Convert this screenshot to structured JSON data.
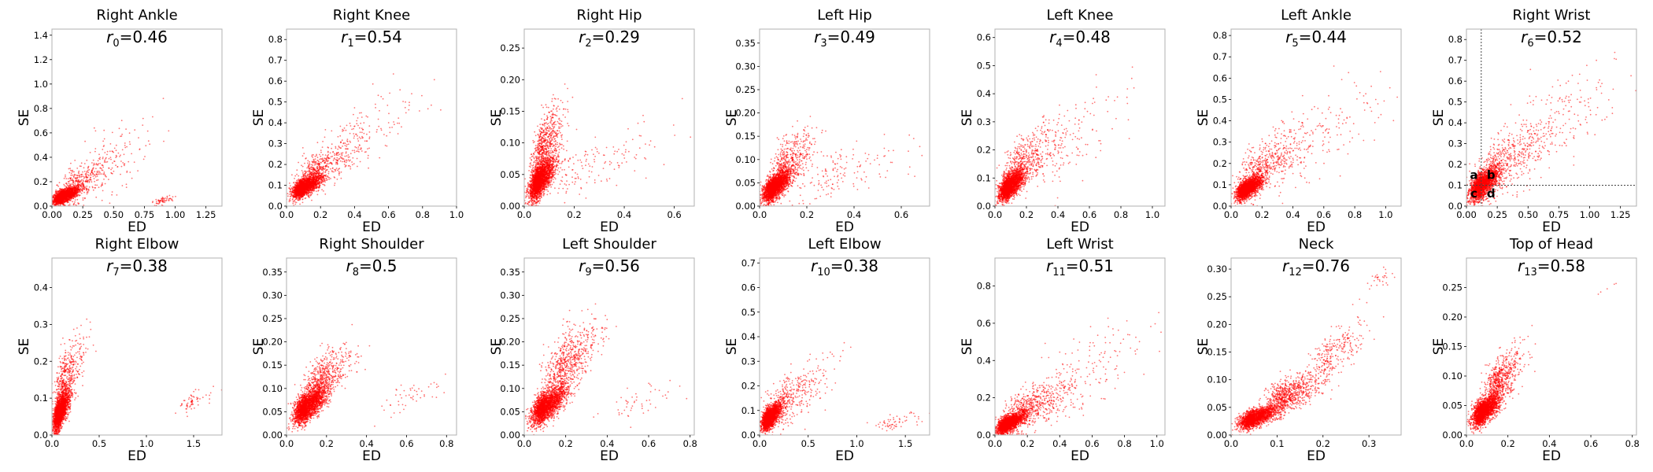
{
  "figure": {
    "colors": {
      "points": "#ff0000",
      "frame": "#b0b0b0",
      "refline": "#444444"
    }
  },
  "chart_data": [
    {
      "type": "scatter",
      "title": "Right Ankle",
      "r_label": {
        "base": "r",
        "sub": "0",
        "text": "=0.46"
      },
      "xlabel": "ED",
      "ylabel": "SE",
      "xlim": [
        0,
        1.38
      ],
      "ylim": [
        0,
        1.45
      ],
      "xticks": [
        "0.00",
        "0.25",
        "0.50",
        "0.75",
        "1.00",
        "1.25"
      ],
      "yticks": [
        "0.0",
        "0.2",
        "0.4",
        "0.6",
        "0.8",
        "1.0",
        "1.2",
        "1.4"
      ],
      "correlation": 0.46,
      "clusters": [
        {
          "cx": 0.09,
          "cy": 0.08,
          "sx": 0.06,
          "sy": 0.05,
          "n": 2200
        },
        {
          "cx": 0.22,
          "cy": 0.18,
          "sx": 0.12,
          "sy": 0.15,
          "n": 400
        },
        {
          "cx": 0.45,
          "cy": 0.35,
          "sx": 0.18,
          "sy": 0.25,
          "n": 120
        },
        {
          "cx": 0.88,
          "cy": 0.04,
          "sx": 0.05,
          "sy": 0.03,
          "n": 60
        }
      ]
    },
    {
      "type": "scatter",
      "title": "Right Knee",
      "r_label": {
        "base": "r",
        "sub": "1",
        "text": "=0.54"
      },
      "xlabel": "ED",
      "ylabel": "SE",
      "xlim": [
        0,
        1.0
      ],
      "ylim": [
        0,
        0.85
      ],
      "xticks": [
        "0.0",
        "0.2",
        "0.4",
        "0.6",
        "0.8",
        "1.0"
      ],
      "yticks": [
        "0.0",
        "0.1",
        "0.2",
        "0.3",
        "0.4",
        "0.5",
        "0.6",
        "0.7",
        "0.8"
      ],
      "correlation": 0.54,
      "clusters": [
        {
          "cx": 0.1,
          "cy": 0.09,
          "sx": 0.05,
          "sy": 0.04,
          "n": 2200
        },
        {
          "cx": 0.2,
          "cy": 0.18,
          "sx": 0.1,
          "sy": 0.09,
          "n": 500
        },
        {
          "cx": 0.45,
          "cy": 0.35,
          "sx": 0.18,
          "sy": 0.15,
          "n": 150
        }
      ]
    },
    {
      "type": "scatter",
      "title": "Right Hip",
      "r_label": {
        "base": "r",
        "sub": "2",
        "text": "=0.29"
      },
      "xlabel": "ED",
      "ylabel": "SE",
      "xlim": [
        0,
        0.68
      ],
      "ylim": [
        0,
        0.28
      ],
      "xticks": [
        "0.0",
        "0.2",
        "0.4",
        "0.6"
      ],
      "yticks": [
        "0.00",
        "0.05",
        "0.10",
        "0.15",
        "0.20",
        "0.25"
      ],
      "correlation": 0.29,
      "clusters": [
        {
          "cx": 0.06,
          "cy": 0.04,
          "sx": 0.03,
          "sy": 0.025,
          "n": 2400
        },
        {
          "cx": 0.08,
          "cy": 0.09,
          "sx": 0.04,
          "sy": 0.05,
          "n": 700
        },
        {
          "cx": 0.25,
          "cy": 0.06,
          "sx": 0.15,
          "sy": 0.04,
          "n": 150
        }
      ]
    },
    {
      "type": "scatter",
      "title": "Left Hip",
      "r_label": {
        "base": "r",
        "sub": "3",
        "text": "=0.49"
      },
      "xlabel": "ED",
      "ylabel": "SE",
      "xlim": [
        0,
        0.72
      ],
      "ylim": [
        0,
        0.38
      ],
      "xticks": [
        "0.0",
        "0.2",
        "0.4",
        "0.6"
      ],
      "yticks": [
        "0.00",
        "0.05",
        "0.10",
        "0.15",
        "0.20",
        "0.25",
        "0.30",
        "0.35"
      ],
      "correlation": 0.49,
      "clusters": [
        {
          "cx": 0.06,
          "cy": 0.04,
          "sx": 0.035,
          "sy": 0.025,
          "n": 2400
        },
        {
          "cx": 0.12,
          "cy": 0.09,
          "sx": 0.06,
          "sy": 0.05,
          "n": 500
        },
        {
          "cx": 0.35,
          "cy": 0.07,
          "sx": 0.18,
          "sy": 0.05,
          "n": 150
        }
      ]
    },
    {
      "type": "scatter",
      "title": "Left Knee",
      "r_label": {
        "base": "r",
        "sub": "4",
        "text": "=0.48"
      },
      "xlabel": "ED",
      "ylabel": "SE",
      "xlim": [
        0,
        1.08
      ],
      "ylim": [
        0,
        0.63
      ],
      "xticks": [
        "0.0",
        "0.2",
        "0.4",
        "0.6",
        "0.8",
        "1.0"
      ],
      "yticks": [
        "0.0",
        "0.1",
        "0.2",
        "0.3",
        "0.4",
        "0.5",
        "0.6"
      ],
      "correlation": 0.48,
      "clusters": [
        {
          "cx": 0.09,
          "cy": 0.07,
          "sx": 0.05,
          "sy": 0.04,
          "n": 2300
        },
        {
          "cx": 0.18,
          "cy": 0.15,
          "sx": 0.1,
          "sy": 0.09,
          "n": 500
        },
        {
          "cx": 0.45,
          "cy": 0.22,
          "sx": 0.2,
          "sy": 0.15,
          "n": 150
        }
      ]
    },
    {
      "type": "scatter",
      "title": "Left Ankle",
      "r_label": {
        "base": "r",
        "sub": "5",
        "text": "=0.44"
      },
      "xlabel": "ED",
      "ylabel": "SE",
      "xlim": [
        0,
        1.1
      ],
      "ylim": [
        0,
        0.83
      ],
      "xticks": [
        "0.0",
        "0.2",
        "0.4",
        "0.6",
        "0.8",
        "1.0"
      ],
      "yticks": [
        "0.0",
        "0.1",
        "0.2",
        "0.3",
        "0.4",
        "0.5",
        "0.6",
        "0.7",
        "0.8"
      ],
      "correlation": 0.44,
      "clusters": [
        {
          "cx": 0.1,
          "cy": 0.08,
          "sx": 0.05,
          "sy": 0.04,
          "n": 2300
        },
        {
          "cx": 0.2,
          "cy": 0.18,
          "sx": 0.12,
          "sy": 0.12,
          "n": 500
        },
        {
          "cx": 0.5,
          "cy": 0.3,
          "sx": 0.25,
          "sy": 0.2,
          "n": 200
        }
      ]
    },
    {
      "type": "scatter",
      "title": "Right Wrist",
      "r_label": {
        "base": "r",
        "sub": "6",
        "text": "=0.52"
      },
      "xlabel": "ED",
      "ylabel": "SE",
      "xlim": [
        0,
        1.38
      ],
      "ylim": [
        0,
        0.85
      ],
      "xticks": [
        "0.00",
        "0.25",
        "0.50",
        "0.75",
        "1.00",
        "1.25"
      ],
      "yticks": [
        "0.0",
        "0.1",
        "0.2",
        "0.3",
        "0.4",
        "0.5",
        "0.6",
        "0.7",
        "0.8"
      ],
      "correlation": 0.52,
      "reference_lines": {
        "x": 0.12,
        "y": 0.1
      },
      "quadrant_labels": [
        {
          "label": "a",
          "x": 0.06,
          "y": 0.15
        },
        {
          "label": "b",
          "x": 0.2,
          "y": 0.15
        },
        {
          "label": "c",
          "x": 0.06,
          "y": 0.06
        },
        {
          "label": "d",
          "x": 0.2,
          "y": 0.06
        }
      ],
      "clusters": [
        {
          "cx": 0.12,
          "cy": 0.1,
          "sx": 0.07,
          "sy": 0.06,
          "n": 2200
        },
        {
          "cx": 0.3,
          "cy": 0.2,
          "sx": 0.18,
          "sy": 0.14,
          "n": 500
        },
        {
          "cx": 0.7,
          "cy": 0.4,
          "sx": 0.3,
          "sy": 0.2,
          "n": 200
        }
      ]
    },
    {
      "type": "scatter",
      "title": "Right Elbow",
      "r_label": {
        "base": "r",
        "sub": "7",
        "text": "=0.38"
      },
      "xlabel": "ED",
      "ylabel": "SE",
      "xlim": [
        0,
        1.8
      ],
      "ylim": [
        0,
        0.48
      ],
      "xticks": [
        "0.0",
        "0.5",
        "1.0",
        "1.5"
      ],
      "yticks": [
        "0.0",
        "0.1",
        "0.2",
        "0.3",
        "0.4"
      ],
      "correlation": 0.38,
      "clusters": [
        {
          "cx": 0.08,
          "cy": 0.06,
          "sx": 0.05,
          "sy": 0.04,
          "n": 2300
        },
        {
          "cx": 0.15,
          "cy": 0.15,
          "sx": 0.1,
          "sy": 0.08,
          "n": 500
        },
        {
          "cx": 1.5,
          "cy": 0.09,
          "sx": 0.12,
          "sy": 0.03,
          "n": 60
        }
      ]
    },
    {
      "type": "scatter",
      "title": "Right Shoulder",
      "r_label": {
        "base": "r",
        "sub": "8",
        "text": "=0.5"
      },
      "xlabel": "ED",
      "ylabel": "SE",
      "xlim": [
        0,
        0.85
      ],
      "ylim": [
        0,
        0.38
      ],
      "xticks": [
        "0.0",
        "0.2",
        "0.4",
        "0.6",
        "0.8"
      ],
      "yticks": [
        "0.00",
        "0.05",
        "0.10",
        "0.15",
        "0.20",
        "0.25",
        "0.30",
        "0.35"
      ],
      "correlation": 0.5,
      "clusters": [
        {
          "cx": 0.1,
          "cy": 0.06,
          "sx": 0.05,
          "sy": 0.03,
          "n": 2400
        },
        {
          "cx": 0.18,
          "cy": 0.12,
          "sx": 0.07,
          "sy": 0.05,
          "n": 600
        },
        {
          "cx": 0.6,
          "cy": 0.08,
          "sx": 0.1,
          "sy": 0.03,
          "n": 50
        }
      ]
    },
    {
      "type": "scatter",
      "title": "Left Shoulder",
      "r_label": {
        "base": "r",
        "sub": "9",
        "text": "=0.56"
      },
      "xlabel": "ED",
      "ylabel": "SE",
      "xlim": [
        0,
        0.82
      ],
      "ylim": [
        0,
        0.38
      ],
      "xticks": [
        "0.0",
        "0.2",
        "0.4",
        "0.6",
        "0.8"
      ],
      "yticks": [
        "0.00",
        "0.05",
        "0.10",
        "0.15",
        "0.20",
        "0.25",
        "0.30",
        "0.35"
      ],
      "correlation": 0.56,
      "clusters": [
        {
          "cx": 0.1,
          "cy": 0.06,
          "sx": 0.05,
          "sy": 0.03,
          "n": 2300
        },
        {
          "cx": 0.2,
          "cy": 0.15,
          "sx": 0.08,
          "sy": 0.07,
          "n": 700
        },
        {
          "cx": 0.55,
          "cy": 0.07,
          "sx": 0.12,
          "sy": 0.03,
          "n": 50
        }
      ]
    },
    {
      "type": "scatter",
      "title": "Left Elbow",
      "r_label": {
        "base": "r",
        "sub": "10",
        "text": "=0.38"
      },
      "xlabel": "ED",
      "ylabel": "SE",
      "xlim": [
        0,
        1.75
      ],
      "ylim": [
        0,
        0.72
      ],
      "xticks": [
        "0.0",
        "0.5",
        "1.0",
        "1.5"
      ],
      "yticks": [
        "0.0",
        "0.1",
        "0.2",
        "0.3",
        "0.4",
        "0.5",
        "0.6",
        "0.7"
      ],
      "correlation": 0.38,
      "clusters": [
        {
          "cx": 0.1,
          "cy": 0.07,
          "sx": 0.06,
          "sy": 0.04,
          "n": 2300
        },
        {
          "cx": 0.3,
          "cy": 0.15,
          "sx": 0.2,
          "sy": 0.1,
          "n": 400
        },
        {
          "cx": 1.4,
          "cy": 0.05,
          "sx": 0.15,
          "sy": 0.03,
          "n": 60
        }
      ]
    },
    {
      "type": "scatter",
      "title": "Left Wrist",
      "r_label": {
        "base": "r",
        "sub": "11",
        "text": "=0.51"
      },
      "xlabel": "ED",
      "ylabel": "SE",
      "xlim": [
        0,
        1.05
      ],
      "ylim": [
        0,
        0.95
      ],
      "xticks": [
        "0.0",
        "0.2",
        "0.4",
        "0.6",
        "0.8",
        "1.0"
      ],
      "yticks": [
        "0.0",
        "0.2",
        "0.4",
        "0.6",
        "0.8"
      ],
      "correlation": 0.51,
      "clusters": [
        {
          "cx": 0.08,
          "cy": 0.06,
          "sx": 0.05,
          "sy": 0.04,
          "n": 2200
        },
        {
          "cx": 0.2,
          "cy": 0.14,
          "sx": 0.12,
          "sy": 0.1,
          "n": 600
        },
        {
          "cx": 0.5,
          "cy": 0.3,
          "sx": 0.25,
          "sy": 0.2,
          "n": 200
        }
      ]
    },
    {
      "type": "scatter",
      "title": "Neck",
      "r_label": {
        "base": "r",
        "sub": "12",
        "text": "=0.76"
      },
      "xlabel": "ED",
      "ylabel": "SE",
      "xlim": [
        0,
        0.37
      ],
      "ylim": [
        0,
        0.32
      ],
      "xticks": [
        "0.0",
        "0.1",
        "0.2",
        "0.3"
      ],
      "yticks": [
        "0.00",
        "0.05",
        "0.10",
        "0.15",
        "0.20",
        "0.25",
        "0.30"
      ],
      "correlation": 0.76,
      "clusters": [
        {
          "cx": 0.05,
          "cy": 0.03,
          "sx": 0.025,
          "sy": 0.015,
          "n": 2000
        },
        {
          "cx": 0.12,
          "cy": 0.07,
          "sx": 0.04,
          "sy": 0.03,
          "n": 800
        },
        {
          "cx": 0.22,
          "cy": 0.15,
          "sx": 0.04,
          "sy": 0.04,
          "n": 250
        },
        {
          "cx": 0.32,
          "cy": 0.28,
          "sx": 0.02,
          "sy": 0.015,
          "n": 30
        }
      ]
    },
    {
      "type": "scatter",
      "title": "Top of Head",
      "r_label": {
        "base": "r",
        "sub": "13",
        "text": "=0.58"
      },
      "xlabel": "ED",
      "ylabel": "SE",
      "xlim": [
        0,
        0.82
      ],
      "ylim": [
        0,
        0.3
      ],
      "xticks": [
        "0.0",
        "0.2",
        "0.4",
        "0.6",
        "0.8"
      ],
      "yticks": [
        "0.00",
        "0.05",
        "0.10",
        "0.15",
        "0.20",
        "0.25"
      ],
      "correlation": 0.58,
      "clusters": [
        {
          "cx": 0.08,
          "cy": 0.04,
          "sx": 0.04,
          "sy": 0.02,
          "n": 2200
        },
        {
          "cx": 0.16,
          "cy": 0.09,
          "sx": 0.06,
          "sy": 0.04,
          "n": 700
        },
        {
          "cx": 0.68,
          "cy": 0.25,
          "sx": 0.03,
          "sy": 0.01,
          "n": 5
        }
      ]
    }
  ]
}
